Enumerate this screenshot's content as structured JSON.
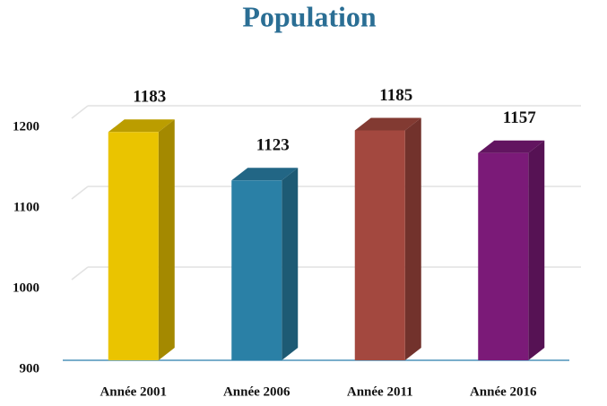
{
  "chart_data": {
    "type": "bar3d",
    "title": "Population",
    "categories": [
      "Année 2001",
      "Année 2006",
      "Année 2011",
      "Année 2016"
    ],
    "values": [
      1183,
      1123,
      1185,
      1157
    ],
    "colors": [
      "#eac400",
      "#2a80a6",
      "#a3483f",
      "#7b1a78"
    ],
    "ylim": [
      900,
      1200
    ],
    "yticks": [
      900,
      1000,
      1100,
      1200
    ],
    "grid": true
  }
}
